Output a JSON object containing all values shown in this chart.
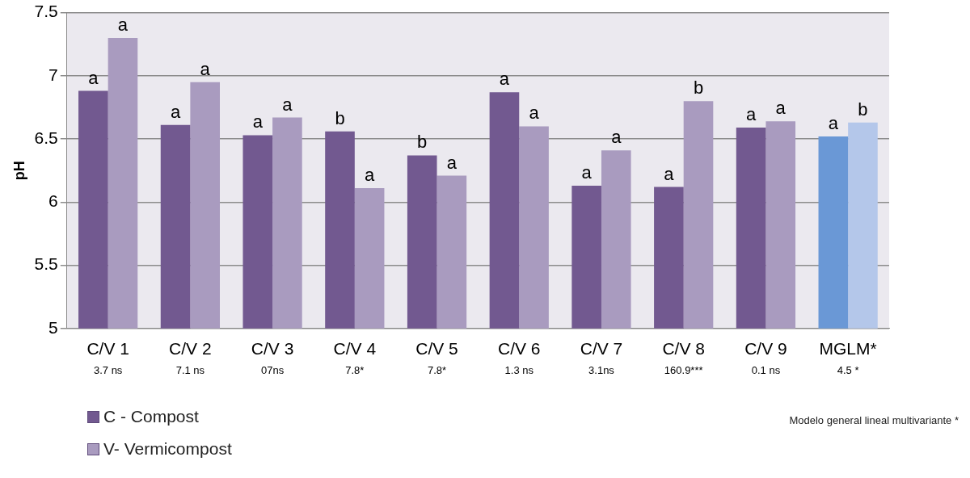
{
  "chart_data": {
    "type": "bar",
    "ylabel": "pH",
    "categories": [
      "C/V 1",
      "C/V 2",
      "C/V 3",
      "C/V 4",
      "C/V 5",
      "C/V 6",
      "C/V 7",
      "C/V 8",
      "C/V 9",
      "MGLM*"
    ],
    "series": [
      {
        "name": "C - Compost",
        "color": "#725990",
        "colors": [
          "#725990",
          "#725990",
          "#725990",
          "#725990",
          "#725990",
          "#725990",
          "#725990",
          "#725990",
          "#725990",
          "#6a98d6"
        ],
        "values": [
          6.88,
          6.61,
          6.53,
          6.56,
          6.37,
          6.87,
          6.13,
          6.12,
          6.59,
          6.52
        ],
        "value_labels": [
          "a",
          "a",
          "a",
          "b",
          "b",
          "a",
          "a",
          "a",
          "a",
          "a"
        ]
      },
      {
        "name": "V- Vermicompost",
        "color": "#a99bbf",
        "colors": [
          "#a99bbf",
          "#a99bbf",
          "#a99bbf",
          "#a99bbf",
          "#a99bbf",
          "#a99bbf",
          "#a99bbf",
          "#a99bbf",
          "#a99bbf",
          "#b4c7ea"
        ],
        "values": [
          7.3,
          6.95,
          6.67,
          6.11,
          6.21,
          6.6,
          6.41,
          6.8,
          6.64,
          6.63
        ],
        "value_labels": [
          "a",
          "a",
          "a",
          "a",
          "a",
          "a",
          "a",
          "b",
          "a",
          "b"
        ]
      }
    ],
    "ylim": [
      5,
      7.5
    ],
    "yticks": [
      5,
      5.5,
      6,
      6.5,
      7,
      7.5
    ],
    "grid": "y",
    "legend": "bottom left",
    "annotations": [
      {
        "text": "3.7 ns",
        "x": "C/V 1"
      },
      {
        "text": "7.1 ns",
        "x": "C/V 2"
      },
      {
        "text": "07ns",
        "x": "C/V 3"
      },
      {
        "text": "7.8*",
        "x": "C/V 4"
      },
      {
        "text": "7.8*",
        "x": "C/V 5"
      },
      {
        "text": "1.3 ns",
        "x": "C/V 6"
      },
      {
        "text": "3.1ns",
        "x": "C/V 7"
      },
      {
        "text": "160.9***",
        "x": "C/V 8"
      },
      {
        "text": "0.1 ns",
        "x": "C/V 9"
      },
      {
        "text": "4.5 *",
        "x": "MGLM*"
      },
      "Modelo  general lineal  multivariante *"
    ]
  }
}
